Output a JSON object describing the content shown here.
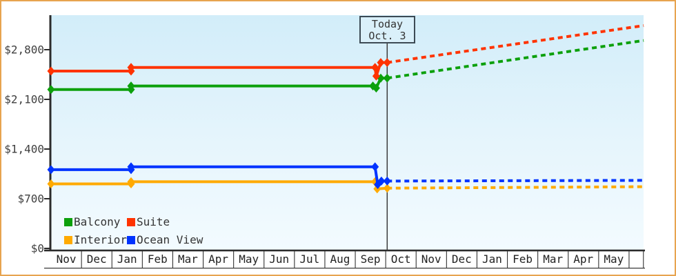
{
  "today_marker": {
    "line1": "Today",
    "line2": "Oct. 3"
  },
  "colors": {
    "frame_border": "#e7a44f",
    "axis": "#2b2b2b",
    "grid": "#333333",
    "label_text": "#3f3f3f",
    "today_line": "#3a3a3a",
    "box_border": "#3c4a54",
    "box_bg": "#daf0fa",
    "plot_bg_top": "#d2edf9",
    "plot_bg_bottom": "#f3fbff"
  },
  "chart_data": {
    "type": "line",
    "title": "",
    "xlabel": "",
    "ylabel": "",
    "x_axis": {
      "months": [
        "Nov",
        "Dec",
        "Jan",
        "Feb",
        "Mar",
        "Apr",
        "May",
        "Jun",
        "Jul",
        "Aug",
        "Sep",
        "Oct",
        "Nov",
        "Dec",
        "Jan",
        "Feb",
        "Mar",
        "Apr",
        "May"
      ]
    },
    "y_axis": {
      "ticks": [
        {
          "label": "$0",
          "value": 0
        },
        {
          "label": "$700",
          "value": 700
        },
        {
          "label": "$1,400",
          "value": 1400
        },
        {
          "label": "$2,100",
          "value": 2100
        },
        {
          "label": "$2,800",
          "value": 2800
        }
      ],
      "range": [
        0,
        3285
      ]
    },
    "today": {
      "month_index": 11.05,
      "date_label": "Oct. 3"
    },
    "grid": false,
    "legend_position": "bottom-left-inside",
    "legend": [
      {
        "label": "Balcony",
        "color": "#0ca00c"
      },
      {
        "label": "Suite",
        "color": "#ff3300"
      },
      {
        "label": "Interior",
        "color": "#ffaa00"
      },
      {
        "label": "Ocean View",
        "color": "#0033ff"
      }
    ],
    "series": [
      {
        "name": "Interior",
        "color": "#ffaa00",
        "solid": [
          [
            0,
            909
          ],
          [
            2.63,
            909
          ],
          [
            2.63,
            939
          ],
          [
            10.65,
            939
          ],
          [
            10.72,
            839
          ],
          [
            11.05,
            849
          ]
        ],
        "projected": [
          [
            11.05,
            849
          ],
          [
            19.48,
            869
          ]
        ]
      },
      {
        "name": "Ocean View",
        "color": "#0033ff",
        "solid": [
          [
            0,
            1109
          ],
          [
            2.63,
            1109
          ],
          [
            2.63,
            1149
          ],
          [
            10.65,
            1149
          ],
          [
            10.74,
            899
          ],
          [
            10.86,
            949
          ],
          [
            11.05,
            949
          ]
        ],
        "projected": [
          [
            11.05,
            949
          ],
          [
            19.48,
            959
          ]
        ]
      },
      {
        "name": "Balcony",
        "color": "#0ca00c",
        "solid": [
          [
            0,
            2239
          ],
          [
            2.63,
            2239
          ],
          [
            2.63,
            2289
          ],
          [
            10.58,
            2289
          ],
          [
            10.69,
            2259
          ],
          [
            10.84,
            2399
          ],
          [
            11.05,
            2399
          ]
        ],
        "projected": [
          [
            11.05,
            2399
          ],
          [
            19.48,
            2929
          ]
        ]
      },
      {
        "name": "Suite",
        "color": "#ff3300",
        "solid": [
          [
            0,
            2499
          ],
          [
            2.63,
            2499
          ],
          [
            2.63,
            2549
          ],
          [
            10.65,
            2549
          ],
          [
            10.69,
            2429
          ],
          [
            10.84,
            2619
          ],
          [
            11.05,
            2619
          ]
        ],
        "projected": [
          [
            11.05,
            2619
          ],
          [
            19.48,
            3139
          ]
        ]
      }
    ]
  }
}
